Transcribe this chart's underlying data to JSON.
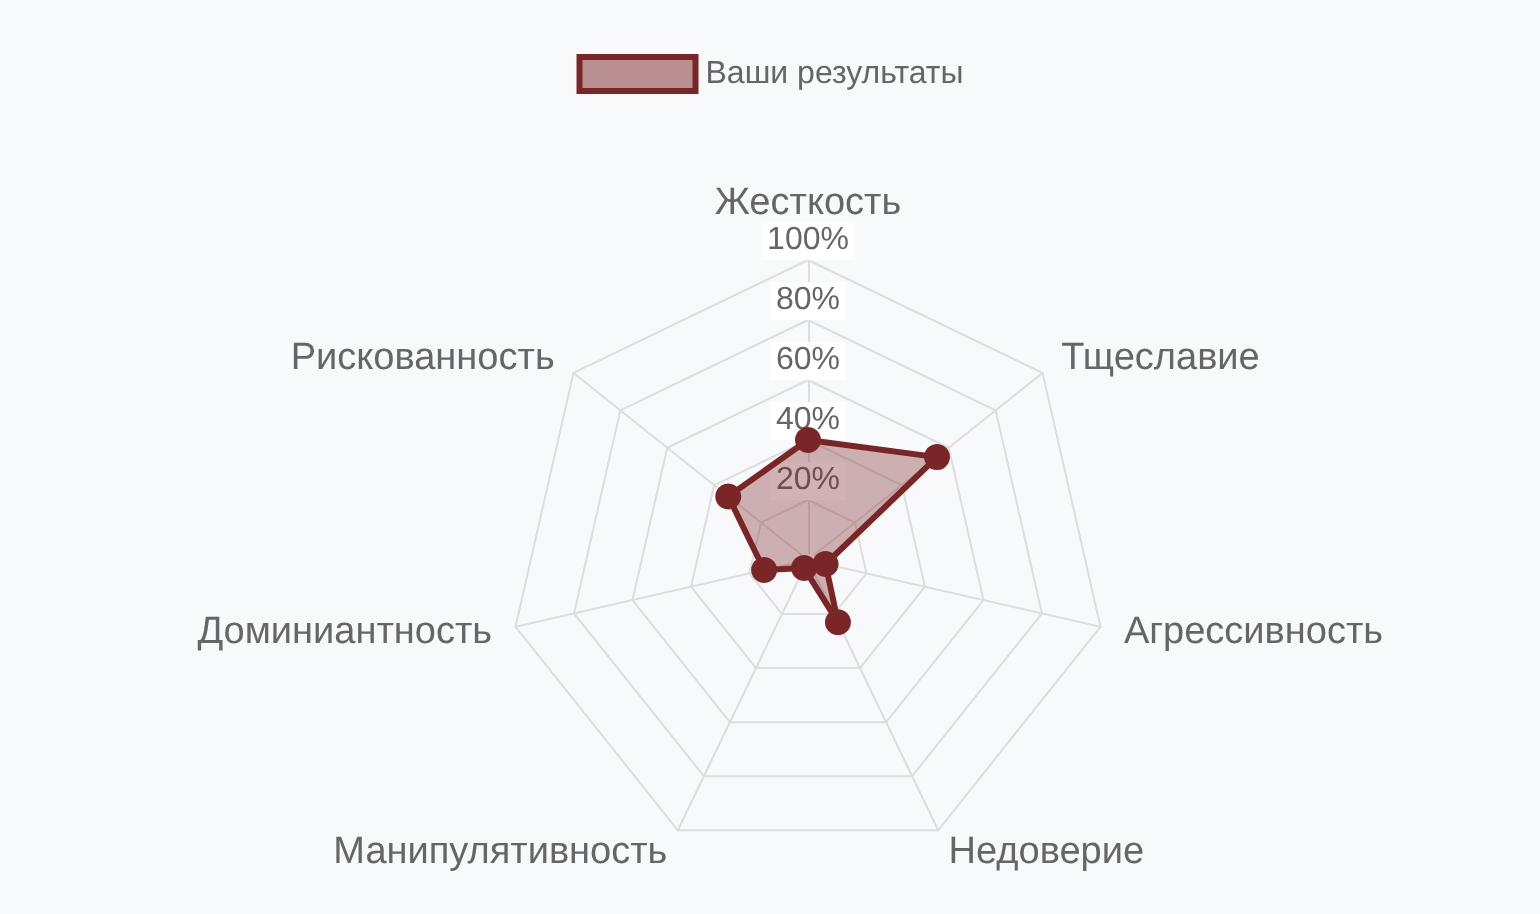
{
  "chart_data": {
    "type": "radar",
    "categories": [
      "Жесткость",
      "Тщеславие",
      "Агрессивность",
      "Недоверие",
      "Манипулятивность",
      "Доминиантность",
      "Рискованность"
    ],
    "series": [
      {
        "name": "Ваши результаты",
        "color": "#7a2626",
        "values": [
          40,
          55,
          6,
          23,
          3,
          15,
          34
        ]
      }
    ],
    "ylim": [
      0,
      100
    ],
    "yticks": [
      {
        "value": 20,
        "label": "20%"
      },
      {
        "value": 40,
        "label": "40%"
      },
      {
        "value": 60,
        "label": "60%"
      },
      {
        "value": 80,
        "label": "80%"
      },
      {
        "value": 100,
        "label": "100%"
      }
    ],
    "grid": true,
    "legend": "top",
    "marker": "circle"
  }
}
